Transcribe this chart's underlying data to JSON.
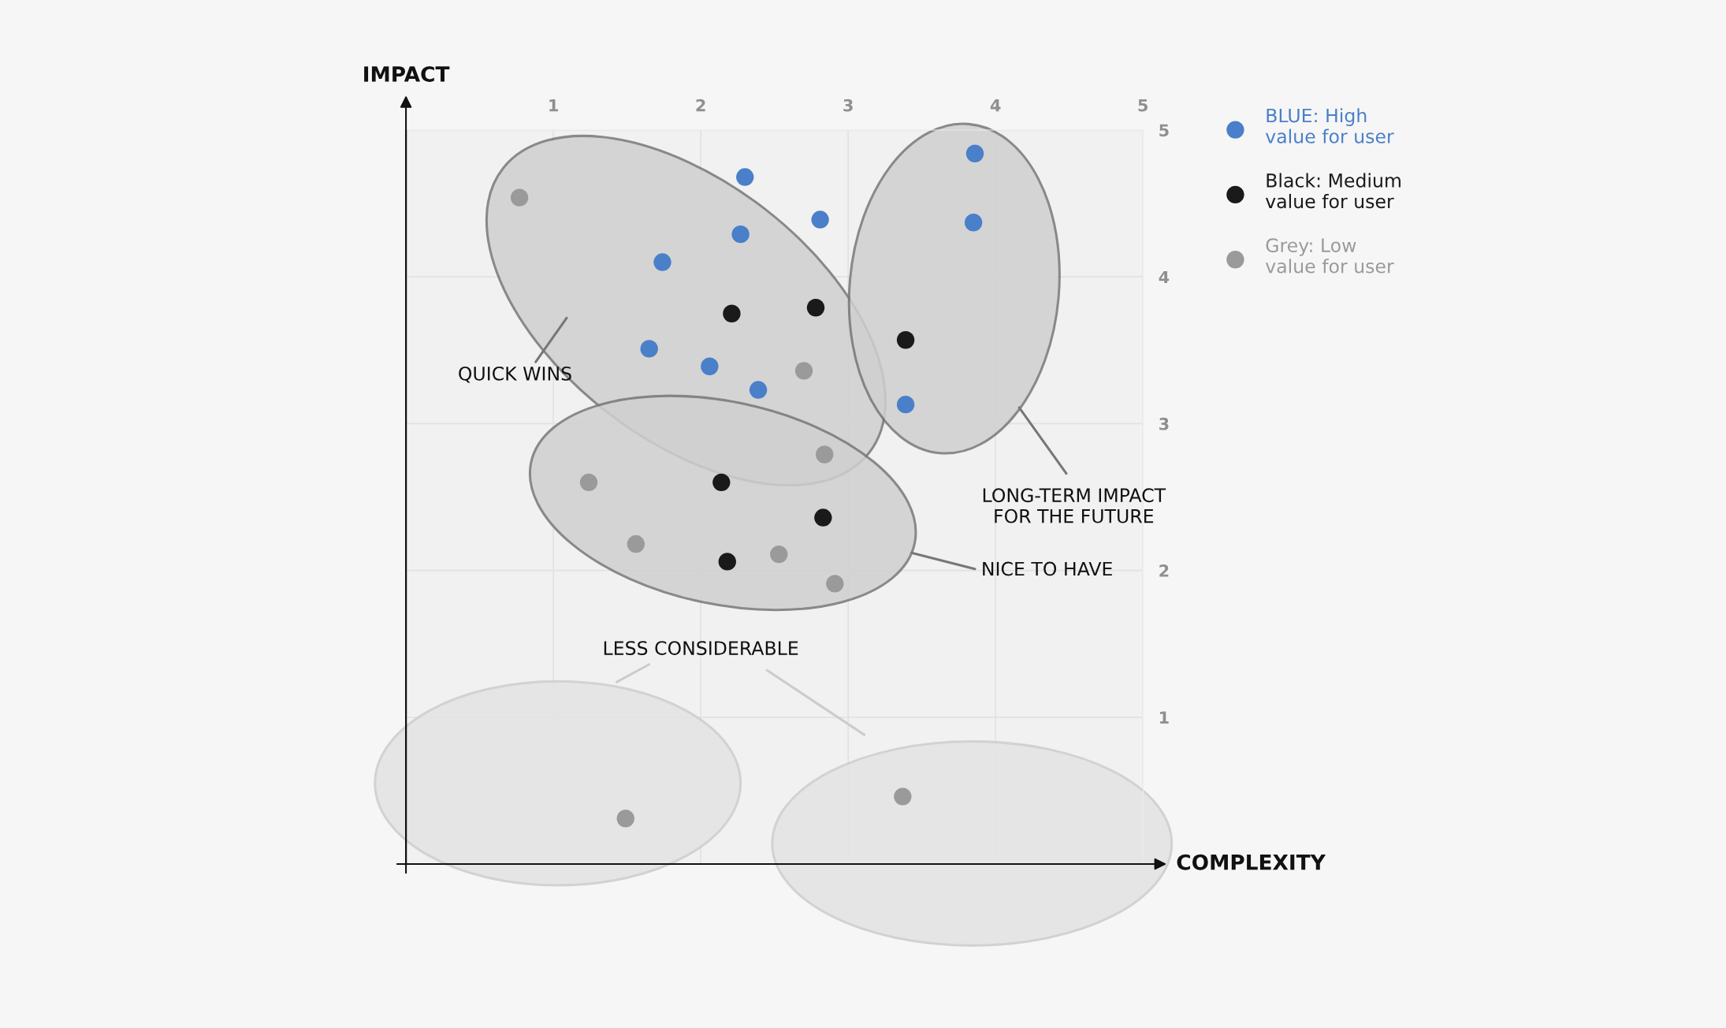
{
  "chart_data": {
    "type": "scatter",
    "xlabel": "COMPLEXITY",
    "ylabel": "IMPACT",
    "xlim": [
      0,
      5
    ],
    "ylim": [
      0,
      5
    ],
    "xticks": [
      1,
      2,
      3,
      4,
      5
    ],
    "yticks": [
      1,
      2,
      3,
      4,
      5
    ],
    "grid": true,
    "legend": "right",
    "marker": "circle",
    "annotations": [
      "QUICK WINS",
      "LONG-TERM IMPACT\nFOR THE FUTURE",
      "NICE TO HAVE",
      "LESS CONSIDERABLE"
    ],
    "series": [
      {
        "name": "BLUE: High\nvalue for user",
        "color": "#4a7fc9",
        "x": [
          2.3,
          2.81,
          2.27,
          1.74,
          1.65,
          2.06,
          2.39,
          3.86,
          3.85,
          3.39
        ],
        "values": [
          4.68,
          4.39,
          4.29,
          4.1,
          3.51,
          3.39,
          3.23,
          4.84,
          4.37,
          3.13
        ]
      },
      {
        "name": "Black: Medium\nvalue for user",
        "color": "#1a1a1a",
        "x": [
          2.21,
          2.78,
          3.39,
          2.14,
          2.83,
          2.18
        ],
        "values": [
          3.75,
          3.79,
          3.57,
          2.6,
          2.36,
          2.06
        ]
      },
      {
        "name": "Grey: Low\nvalue for user",
        "color": "#9a9a9a",
        "x": [
          0.77,
          2.7,
          2.84,
          1.24,
          1.56,
          2.53,
          2.91,
          1.49,
          3.37
        ],
        "values": [
          4.54,
          3.36,
          2.79,
          2.6,
          2.18,
          2.11,
          1.91,
          0.31,
          0.46
        ]
      }
    ]
  }
}
